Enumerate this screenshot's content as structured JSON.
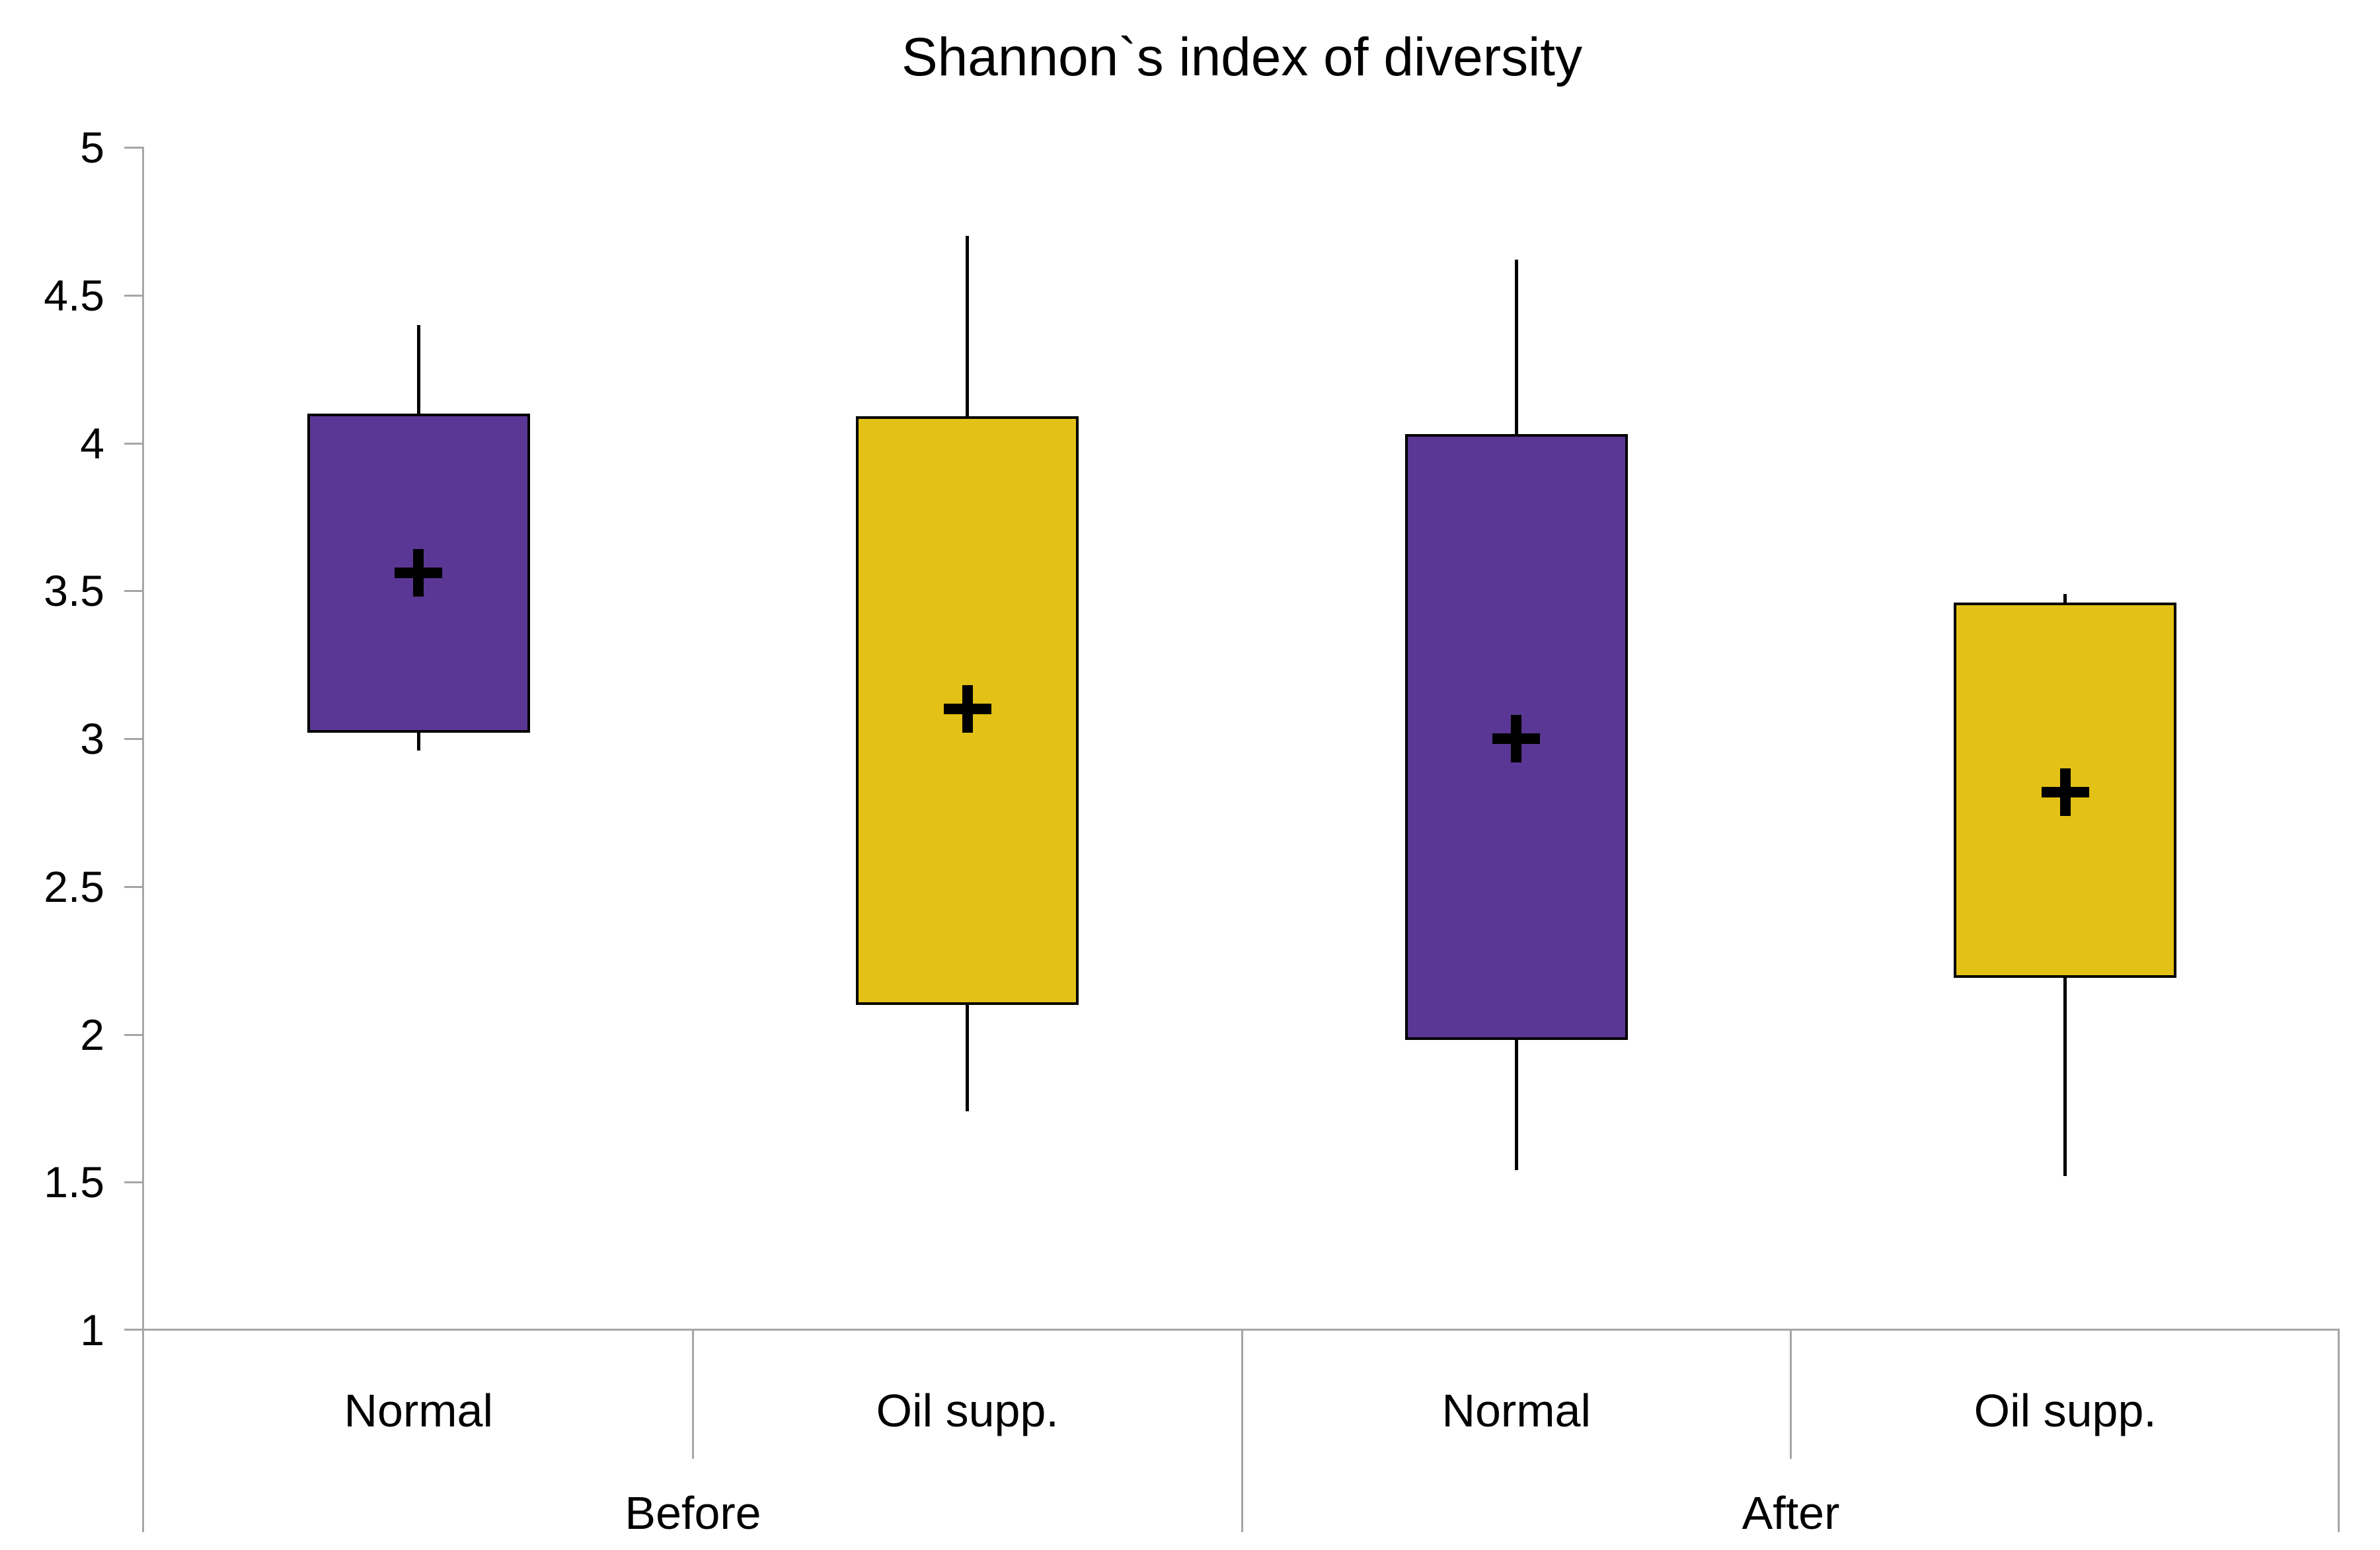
{
  "title": "Shannon`s index of diversity",
  "colors": {
    "purple": "#5A3794",
    "gold": "#E3C116",
    "axis_line": "#A6A6A6",
    "text": "#000000",
    "marker": "#000000",
    "background": "#FFFFFF"
  },
  "chart_data": {
    "type": "box",
    "title": "Shannon`s index of diversity",
    "xlabel": "",
    "ylabel": "",
    "ylim": [
      1,
      5
    ],
    "yticks": [
      5,
      4.5,
      4,
      3.5,
      3,
      2.5,
      2,
      1.5,
      1
    ],
    "ytick_labels": [
      "5",
      "4.5",
      "4",
      "3.5",
      "3",
      "2.5",
      "2",
      "1.5",
      "1"
    ],
    "grid": false,
    "legend_position": "none",
    "mean_marker": "plus",
    "groups": [
      {
        "label": "Before",
        "categories": [
          "Normal",
          "Oil supp."
        ]
      },
      {
        "label": "After",
        "categories": [
          "Normal",
          "Oil supp."
        ]
      }
    ],
    "boxes": [
      {
        "group": "Before",
        "category": "Normal",
        "color_key": "purple",
        "whisker_high": 4.4,
        "box_top": 4.1,
        "mean": 3.56,
        "box_bottom": 3.02,
        "whisker_low": 2.96
      },
      {
        "group": "Before",
        "category": "Oil supp.",
        "color_key": "gold",
        "whisker_high": 4.7,
        "box_top": 4.09,
        "mean": 3.1,
        "box_bottom": 2.1,
        "whisker_low": 1.74
      },
      {
        "group": "After",
        "category": "Normal",
        "color_key": "purple",
        "whisker_high": 4.62,
        "box_top": 4.03,
        "mean": 3.0,
        "box_bottom": 1.98,
        "whisker_low": 1.54
      },
      {
        "group": "After",
        "category": "Oil supp.",
        "color_key": "gold",
        "whisker_high": 3.49,
        "box_top": 3.46,
        "mean": 2.82,
        "box_bottom": 2.19,
        "whisker_low": 1.52
      }
    ]
  }
}
